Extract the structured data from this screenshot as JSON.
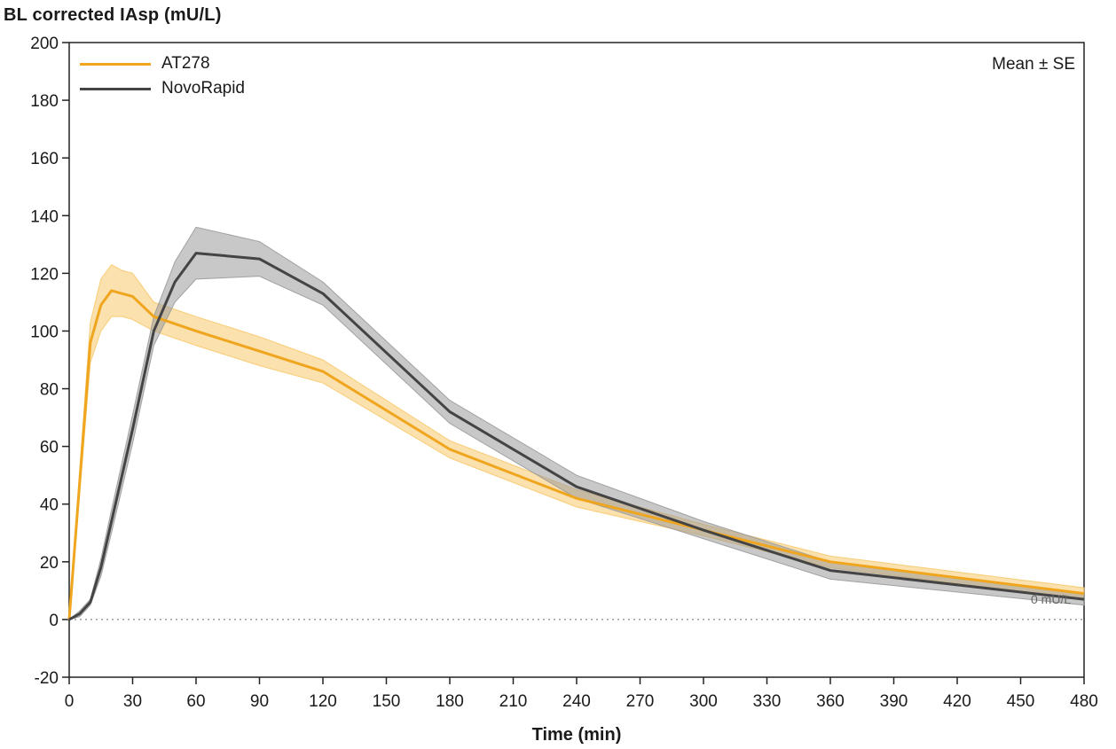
{
  "chart_data": {
    "type": "line",
    "ylabel": "BL corrected IAsp (mU/L)",
    "xlabel": "Time (min)",
    "annotation": "Mean ± SE",
    "reference_line": {
      "y": 0,
      "label": "0 mU/L"
    },
    "xlim": [
      0,
      480
    ],
    "ylim": [
      -20,
      200
    ],
    "x_ticks": [
      0,
      30,
      60,
      90,
      120,
      150,
      180,
      210,
      240,
      270,
      300,
      330,
      360,
      390,
      420,
      450,
      480
    ],
    "y_ticks": [
      -20,
      0,
      20,
      40,
      60,
      80,
      100,
      120,
      140,
      160,
      180,
      200
    ],
    "legend_position": "top-left",
    "series": [
      {
        "name": "AT278",
        "color": "#f0a51e",
        "band_color": "#f7c96b",
        "x": [
          0,
          5,
          10,
          15,
          20,
          25,
          30,
          40,
          60,
          90,
          120,
          180,
          240,
          300,
          360,
          480
        ],
        "y": [
          0,
          48,
          96,
          109,
          114,
          113,
          112,
          105,
          100,
          93,
          86,
          59,
          42,
          31,
          20,
          9
        ],
        "se": [
          0,
          4,
          7,
          9,
          9,
          8,
          8,
          5,
          5,
          5,
          4,
          3,
          3,
          2,
          2,
          2
        ]
      },
      {
        "name": "NovoRapid",
        "color": "#444444",
        "band_color": "#9a9a9a",
        "x": [
          0,
          5,
          10,
          15,
          20,
          30,
          40,
          50,
          60,
          90,
          120,
          180,
          240,
          300,
          360,
          480
        ],
        "y": [
          0,
          2,
          6,
          18,
          34,
          66,
          100,
          117,
          127,
          125,
          113,
          72,
          46,
          31,
          17,
          7
        ],
        "se": [
          0,
          1,
          1,
          3,
          4,
          5,
          5,
          7,
          9,
          6,
          4,
          4,
          4,
          3,
          3,
          2
        ]
      }
    ]
  }
}
